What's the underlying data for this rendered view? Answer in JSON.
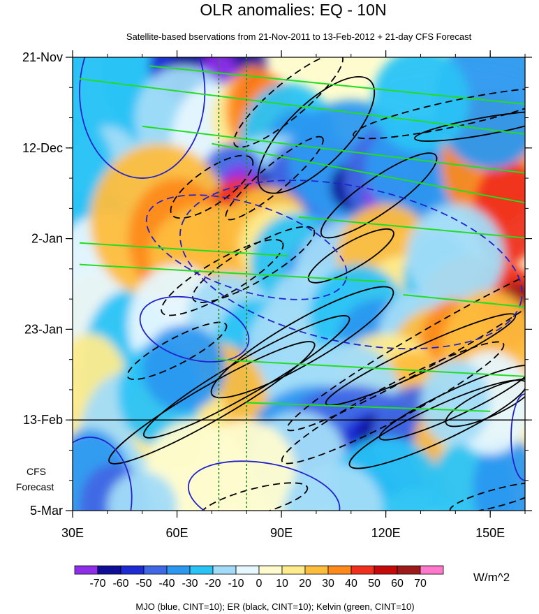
{
  "chart_data": {
    "type": "heatmap",
    "title": "OLR anomalies: EQ - 10N",
    "subtitle": "Satellite-based bservations from 21-Nov-2011 to 13-Feb-2012 + 21-day CFS Forecast",
    "x_ticks": [
      {
        "label": "30E",
        "value": 30
      },
      {
        "label": "60E",
        "value": 60
      },
      {
        "label": "90E",
        "value": 90
      },
      {
        "label": "120E",
        "value": 120
      },
      {
        "label": "150E",
        "value": 150
      }
    ],
    "xlim": [
      30,
      160
    ],
    "x_minor_step": 10,
    "y_ticks": [
      {
        "label": "21-Nov",
        "value": 0
      },
      {
        "label": "12-Dec",
        "value": 21
      },
      {
        "label": "2-Jan",
        "value": 42
      },
      {
        "label": "23-Jan",
        "value": 63
      },
      {
        "label": "13-Feb",
        "value": 84
      },
      {
        "label": "5-Mar",
        "value": 105
      }
    ],
    "ylim_days": [
      0,
      105
    ],
    "y_minor_step_days": 7,
    "forecast_start_day": 84,
    "forecast_label": [
      "CFS",
      "Forecast"
    ],
    "reference_longitudes": [
      72,
      80
    ],
    "color_levels": [
      -70,
      -60,
      -50,
      -40,
      -30,
      -20,
      -10,
      0,
      10,
      20,
      30,
      40,
      50,
      60,
      70
    ],
    "color_labels": [
      "-70",
      "-60",
      "-50",
      "-40",
      "-30",
      "-20",
      "-10",
      "0",
      "10",
      "20",
      "30",
      "40",
      "50",
      "60",
      "70"
    ],
    "colors": [
      "#8f2ee8",
      "#0e0e96",
      "#1e2ad2",
      "#4068e4",
      "#2c98f0",
      "#29c3f5",
      "#a2dcf8",
      "#e6f7fe",
      "#fefccf",
      "#feeb8c",
      "#fdbd3c",
      "#fd8a1b",
      "#f0301c",
      "#c40a0a",
      "#9c1a1a",
      "#ff78cc"
    ],
    "units": "W/m^2",
    "filter_note": "MJO (blue, CINT=10); ER (black, CINT=10); Kelvin (green, CINT=10)",
    "contour_colors": {
      "mjo": "#2222cc",
      "er": "#000000",
      "kelvin": "#22dd22"
    }
  }
}
